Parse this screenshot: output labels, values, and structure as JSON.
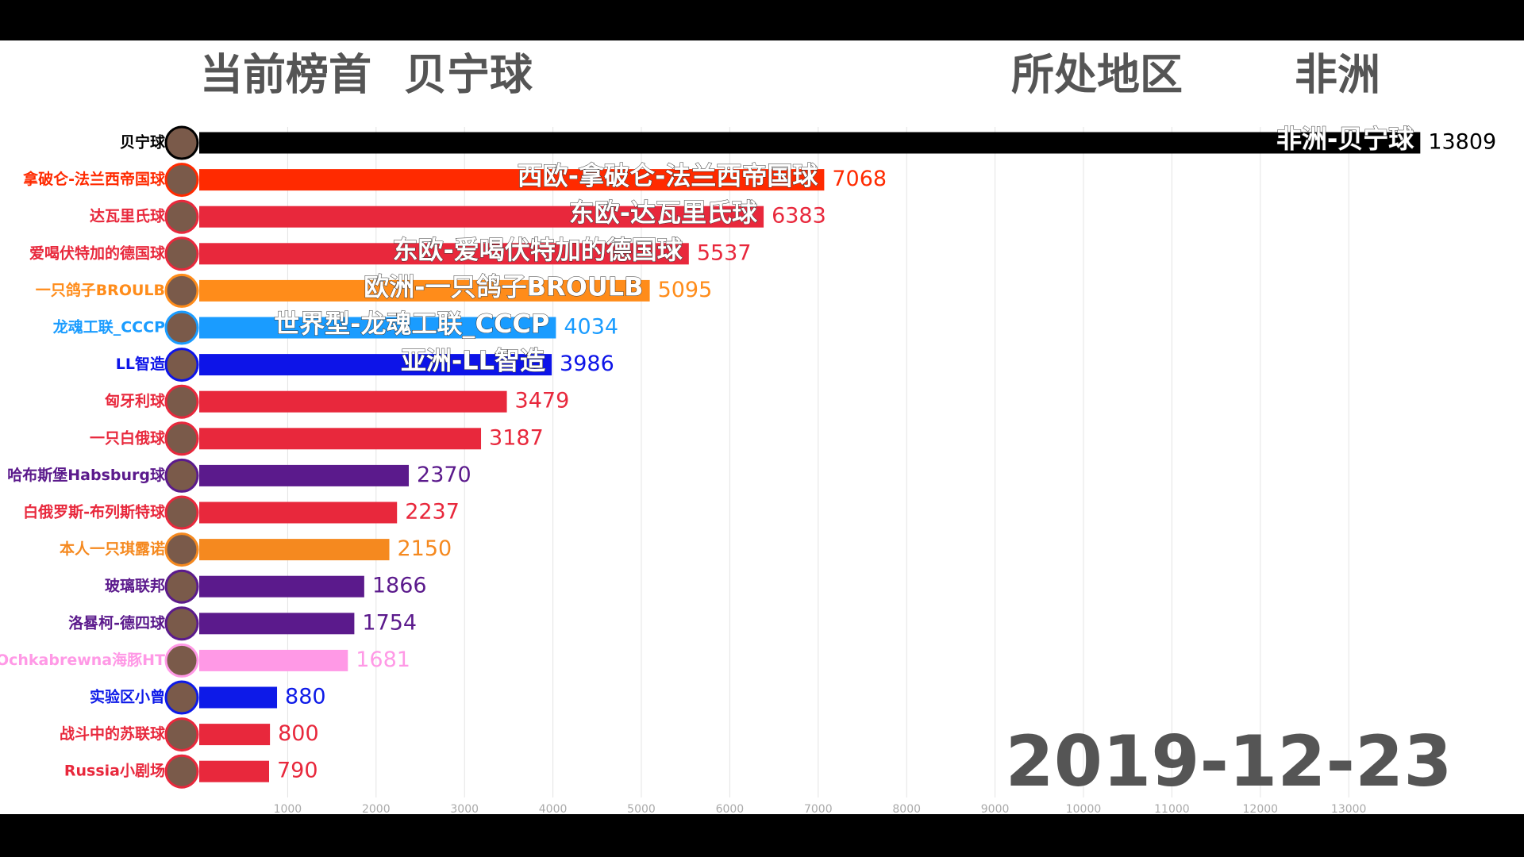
{
  "chart_data": {
    "type": "bar",
    "orientation": "horizontal",
    "title": "当前榜首",
    "leader": "贝宁球",
    "region_label": "所处地区",
    "region": "非洲",
    "date": "2019-12-23",
    "categories": [
      "贝宁球",
      "拿破仑-法兰西帝国球",
      "达瓦里氏球",
      "爱喝伏特加的德国球",
      "一只鸽子BROULB",
      "龙魂工联_CCCP",
      "LL智造",
      "匈牙利球",
      "一只白俄球",
      "哈布斯堡Habsburg球",
      "白俄罗斯-布列斯特球",
      "本人一只琪露诺",
      "玻璃联邦",
      "洛晷柯-德四球",
      "Ochkabrewna海豚HT",
      "实验区小曾",
      "战斗中的苏联球",
      "Russia小剧场"
    ],
    "values": [
      13809,
      7068,
      6383,
      5537,
      5095,
      4034,
      3986,
      3479,
      3187,
      2370,
      2237,
      2150,
      1866,
      1754,
      1681,
      880,
      800,
      790
    ],
    "bar_labels": [
      "非洲-贝宁球",
      "西欧-拿破仑-法兰西帝国球",
      "东欧-达瓦里氏球",
      "东欧-爱喝伏特加的德国球",
      "欧洲-一只鸽子BROULB",
      "世界型-龙魂工联_CCCP",
      "亚洲-LL智造",
      null,
      null,
      null,
      null,
      null,
      null,
      null,
      null,
      null,
      null,
      null
    ],
    "colors": [
      "#000000",
      "#ff2a00",
      "#e8283c",
      "#e8283c",
      "#ff8c1a",
      "#1a9cff",
      "#0d14e8",
      "#e8283c",
      "#e8283c",
      "#5b1a8c",
      "#e8283c",
      "#f5891f",
      "#5b1a8c",
      "#5b1a8c",
      "#ff99e6",
      "#0d1ae8",
      "#e8283c",
      "#e8283c"
    ],
    "xlim": [
      0,
      15000
    ],
    "xticks": [
      1000,
      2000,
      3000,
      4000,
      5000,
      6000,
      7000,
      8000,
      9000,
      10000,
      11000,
      12000,
      13000
    ],
    "grid": true
  }
}
